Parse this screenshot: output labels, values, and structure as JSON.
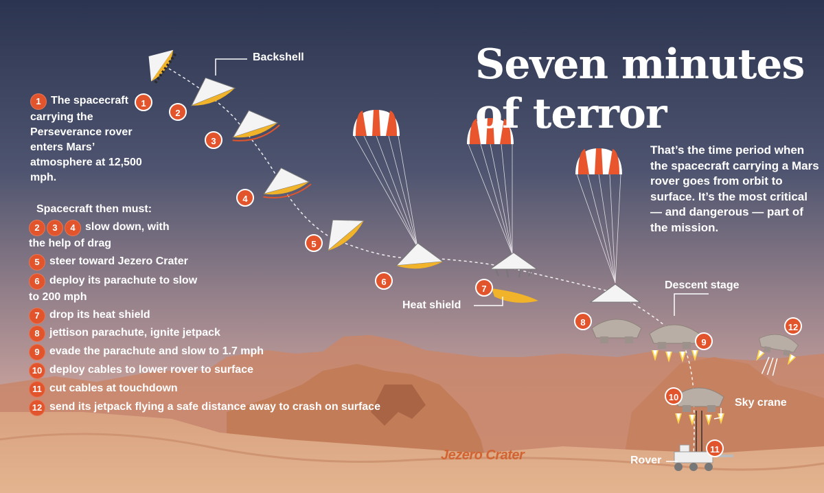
{
  "title": "Seven minutes of terror",
  "subtitle": "That’s the time period when the spacecraft carrying a Mars rover goes from orbit to surface. It’s the most critical — and dangerous — part of the mission.",
  "intro": "The spacecraft carrying the Perseverance rover enters Mars’ atmosphere at 12,500 mph.",
  "then_label": "Spacecraft then must:",
  "steps": [
    {
      "nums": [
        "2",
        "3",
        "4"
      ],
      "text": "slow down, with",
      "text2": "the help of drag"
    },
    {
      "nums": [
        "5"
      ],
      "text": "steer toward Jezero Crater"
    },
    {
      "nums": [
        "6"
      ],
      "text": "deploy its parachute to slow",
      "text2": "to 200 mph"
    },
    {
      "nums": [
        "7"
      ],
      "text": "drop its heat shield"
    },
    {
      "nums": [
        "8"
      ],
      "text": "jettison parachute, ignite jetpack"
    },
    {
      "nums": [
        "9"
      ],
      "text": "evade the parachute and slow to 1.7 mph"
    },
    {
      "nums": [
        "10"
      ],
      "text": "deploy cables to lower rover to surface"
    },
    {
      "nums": [
        "11"
      ],
      "text": "cut cables at touchdown"
    },
    {
      "nums": [
        "12"
      ],
      "text": "send its jetpack flying a safe distance away to crash on surface"
    }
  ],
  "intro_num": "1",
  "labels": {
    "backshell": "Backshell",
    "heat_shield": "Heat shield",
    "descent_stage": "Descent stage",
    "sky_crane": "Sky crane",
    "rover": "Rover",
    "crater": "Jezero Crater"
  },
  "path_numbers": [
    "1",
    "2",
    "3",
    "4",
    "5",
    "6",
    "7",
    "8",
    "9",
    "10",
    "11",
    "12"
  ],
  "colors": {
    "sky_top": "#2e3750",
    "sky_bottom": "#c9a29a",
    "ground": "#d9a07a",
    "mesa": "#c9805a",
    "accent": "#e2542c",
    "capsule_heat": "#f1b32a"
  }
}
